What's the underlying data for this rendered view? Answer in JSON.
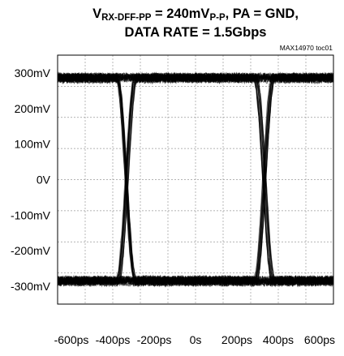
{
  "header": {
    "line1": {
      "v": "V",
      "v_sub": "RX-DFF-PP",
      "mid": " = 240mV",
      "unit_sub": "P-P",
      "rest": ", PA = GND,"
    },
    "line2": "DATA RATE = 1.5Gbps",
    "note": "MAX14970 toc01"
  },
  "chart_data": {
    "type": "line",
    "subtype": "eye-diagram",
    "title": "VRX-DFF-PP = 240mVP-P, PA = GND, DATA RATE = 1.5Gbps",
    "xlabel": "",
    "ylabel": "",
    "x_unit": "ps",
    "y_unit": "mV",
    "xlim": [
      -666.7,
      666.7
    ],
    "ylim": [
      -350,
      350
    ],
    "x_ticks": [
      -600,
      -400,
      -200,
      0,
      200,
      400,
      600
    ],
    "x_tick_labels": [
      "-600ps",
      "-400ps",
      "-200ps",
      "0s",
      "200ps",
      "400ps",
      "600ps"
    ],
    "y_ticks": [
      300,
      200,
      100,
      0,
      -100,
      -200,
      -300
    ],
    "y_tick_labels": [
      "300mV",
      "200mV",
      "100mV",
      "0V",
      "-100mV",
      "-200mV",
      "-300mV"
    ],
    "grid": true,
    "grid_style": "dashed",
    "high_level_mV": 285,
    "low_level_mV": -285,
    "crossings_ps": [
      -333,
      333
    ],
    "transition_time_ps": 90,
    "noise_band_mV": 14
  }
}
